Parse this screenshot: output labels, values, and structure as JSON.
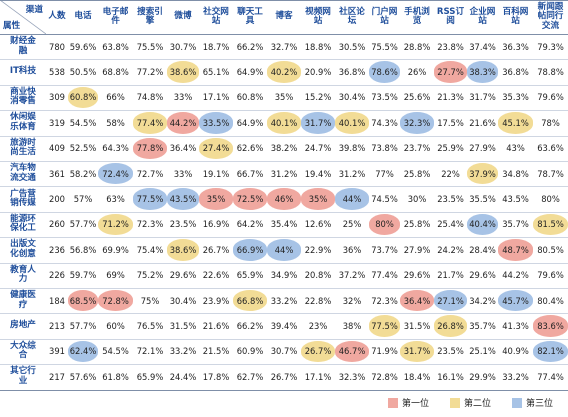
{
  "chart_data": {
    "type": "table",
    "corner": {
      "top": "渠道",
      "bottom": "属性"
    },
    "columns": [
      "人数",
      "电话",
      "电子邮件",
      "搜索引擎",
      "微博",
      "社交网站",
      "聊天工具",
      "博客",
      "视频网站",
      "社区论坛",
      "门户网站",
      "手机浏览",
      "RSS订阅",
      "企业网站",
      "百科网站",
      "新闻跟帖同行交流"
    ],
    "rows": [
      {
        "label": "财经金融",
        "values": [
          "780",
          "59.6%",
          "63.8%",
          "75.5%",
          "30.7%",
          "18.7%",
          "66.2%",
          "32.7%",
          "18.8%",
          "30.5%",
          "75.5%",
          "28.8%",
          "23.8%",
          "37.4%",
          "36.3%",
          "79.3%"
        ],
        "highlights": {}
      },
      {
        "label": "IT科技",
        "values": [
          "538",
          "50.5%",
          "68.8%",
          "77.2%",
          "38.6%",
          "65.1%",
          "64.9%",
          "40.2%",
          "20.9%",
          "36.8%",
          "78.6%",
          "26%",
          "27.7%",
          "38.3%",
          "36.8%",
          "78.8%"
        ],
        "highlights": {
          "4": 2,
          "7": 2,
          "10": 3,
          "12": 1,
          "13": 3
        }
      },
      {
        "label": "商业快消零售",
        "values": [
          "309",
          "60.8%",
          "66%",
          "74.8%",
          "33%",
          "17.1%",
          "60.8%",
          "35%",
          "15.2%",
          "30.4%",
          "73.5%",
          "25.6%",
          "21.3%",
          "31.7%",
          "35.3%",
          "79.6%"
        ],
        "highlights": {
          "1": 2
        }
      },
      {
        "label": "休闲娱乐体育",
        "values": [
          "319",
          "54.5%",
          "58%",
          "77.4%",
          "44.2%",
          "33.5%",
          "64.9%",
          "40.1%",
          "31.7%",
          "40.1%",
          "74.3%",
          "32.3%",
          "17.5%",
          "21.6%",
          "45.1%",
          "78%"
        ],
        "highlights": {
          "3": 2,
          "4": 1,
          "5": 3,
          "7": 2,
          "8": 3,
          "9": 2,
          "11": 3,
          "14": 2
        }
      },
      {
        "label": "旅游时尚生活",
        "values": [
          "409",
          "52.5%",
          "64.3%",
          "77.8%",
          "36.4%",
          "27.4%",
          "62.6%",
          "38.2%",
          "24.7%",
          "39.8%",
          "73.8%",
          "23.7%",
          "25.9%",
          "27.9%",
          "43%",
          "63.6%"
        ],
        "highlights": {
          "3": 1,
          "5": 2
        }
      },
      {
        "label": "汽车物流交通",
        "values": [
          "361",
          "58.2%",
          "72.4%",
          "72.7%",
          "33%",
          "19.1%",
          "66.7%",
          "31.2%",
          "19.4%",
          "31.2%",
          "77%",
          "25.8%",
          "22%",
          "37.9%",
          "34.8%",
          "78.7%"
        ],
        "highlights": {
          "2": 3,
          "13": 2
        }
      },
      {
        "label": "广告营销传媒",
        "values": [
          "200",
          "57%",
          "63%",
          "77.5%",
          "43.5%",
          "35%",
          "72.5%",
          "46%",
          "35%",
          "44%",
          "74.5%",
          "30%",
          "23.5%",
          "35.5%",
          "43.5%",
          "80%"
        ],
        "highlights": {
          "3": 3,
          "4": 3,
          "5": 1,
          "6": 1,
          "7": 1,
          "8": 1,
          "9": 3
        }
      },
      {
        "label": "能源环保化工",
        "values": [
          "260",
          "57.7%",
          "71.2%",
          "72.3%",
          "23.5%",
          "16.9%",
          "64.2%",
          "35.4%",
          "12.6%",
          "25%",
          "80%",
          "25.8%",
          "25.4%",
          "40.4%",
          "35.7%",
          "81.5%"
        ],
        "highlights": {
          "2": 2,
          "10": 1,
          "13": 3,
          "15": 2
        }
      },
      {
        "label": "出版文化创意",
        "values": [
          "236",
          "56.8%",
          "69.9%",
          "75.4%",
          "38.6%",
          "26.7%",
          "66.9%",
          "44%",
          "22.9%",
          "36%",
          "73.7%",
          "27.9%",
          "24.2%",
          "28.4%",
          "48.7%",
          "80.5%"
        ],
        "highlights": {
          "4": 2,
          "6": 3,
          "7": 3,
          "14": 1
        }
      },
      {
        "label": "教育人力",
        "values": [
          "226",
          "59.7%",
          "69%",
          "75.2%",
          "29.6%",
          "22.6%",
          "65.9%",
          "34.9%",
          "20.8%",
          "37.2%",
          "77.4%",
          "29.6%",
          "21.7%",
          "29.6%",
          "44.2%",
          "79.6%"
        ],
        "highlights": {}
      },
      {
        "label": "健康医疗",
        "values": [
          "184",
          "68.5%",
          "72.8%",
          "75%",
          "30.4%",
          "23.9%",
          "66.8%",
          "33.2%",
          "22.8%",
          "32%",
          "72.3%",
          "36.4%",
          "27.1%",
          "34.2%",
          "45.7%",
          "80.4%"
        ],
        "highlights": {
          "1": 1,
          "2": 1,
          "6": 2,
          "11": 1,
          "12": 3,
          "14": 3
        }
      },
      {
        "label": "房地产",
        "values": [
          "213",
          "57.7%",
          "60%",
          "76.5%",
          "31.5%",
          "21.6%",
          "66.2%",
          "39.4%",
          "23%",
          "38%",
          "77.5%",
          "31.5%",
          "26.8%",
          "35.7%",
          "41.3%",
          "83.6%"
        ],
        "highlights": {
          "10": 2,
          "12": 2,
          "15": 1
        }
      },
      {
        "label": "大众综合",
        "values": [
          "391",
          "62.4%",
          "54.5%",
          "72.1%",
          "33.2%",
          "21.5%",
          "60.9%",
          "30.7%",
          "26.7%",
          "46.7%",
          "71.9%",
          "31.7%",
          "23.5%",
          "25.1%",
          "40.9%",
          "82.1%"
        ],
        "highlights": {
          "1": 3,
          "8": 2,
          "9": 1,
          "11": 2,
          "15": 3
        }
      },
      {
        "label": "其它行业",
        "values": [
          "217",
          "57.6%",
          "61.8%",
          "65.9%",
          "24.4%",
          "17.8%",
          "62.7%",
          "26.7%",
          "17.1%",
          "32.3%",
          "72.8%",
          "18.4%",
          "16.1%",
          "29.9%",
          "33.2%",
          "77.4%"
        ],
        "highlights": {}
      }
    ],
    "legend": [
      {
        "label": "第一位",
        "color": "#f0a8a0"
      },
      {
        "label": "第二位",
        "color": "#f2dc96"
      },
      {
        "label": "第三位",
        "color": "#a7c3e6"
      }
    ]
  }
}
